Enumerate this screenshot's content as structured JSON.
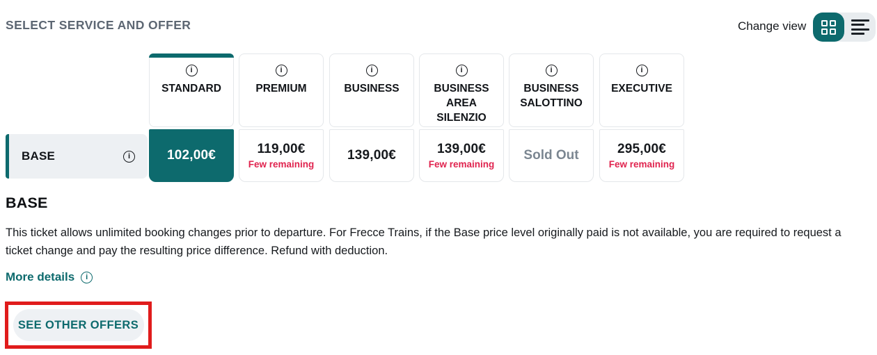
{
  "page": {
    "title": "SELECT SERVICE AND OFFER"
  },
  "view_toggle": {
    "label": "Change view",
    "active_view": "grid"
  },
  "icons": {
    "info_glyph": "i"
  },
  "colors": {
    "accent_teal": "#0d6a6d",
    "few_remaining_red": "#e0234e",
    "annotation_red": "#e01c1c",
    "sold_out_gray": "#7b8691",
    "row_background": "#edf0f3"
  },
  "service_columns": [
    {
      "label": "STANDARD",
      "selected": true
    },
    {
      "label": "PREMIUM",
      "selected": false
    },
    {
      "label": "BUSINESS",
      "selected": false
    },
    {
      "label": "BUSINESS AREA SILENZIO",
      "selected": false
    },
    {
      "label": "BUSINESS SALOTTINO",
      "selected": false
    },
    {
      "label": "EXECUTIVE",
      "selected": false
    }
  ],
  "fare_row": {
    "label": "BASE",
    "cells": [
      {
        "price": "102,00€",
        "selected": true
      },
      {
        "price": "119,00€",
        "note": "Few remaining"
      },
      {
        "price": "139,00€"
      },
      {
        "price": "139,00€",
        "note": "Few remaining"
      },
      {
        "sold_out": "Sold Out"
      },
      {
        "price": "295,00€",
        "note": "Few remaining"
      }
    ]
  },
  "details": {
    "heading": "BASE",
    "description": "This ticket allows unlimited booking changes prior to departure. For Frecce Trains, if the Base price level originally paid is not available, you are required to request a ticket change and pay the resulting price difference. Refund with deduction.",
    "more_details": "More details"
  },
  "actions": {
    "see_other_offers": "SEE OTHER OFFERS"
  }
}
